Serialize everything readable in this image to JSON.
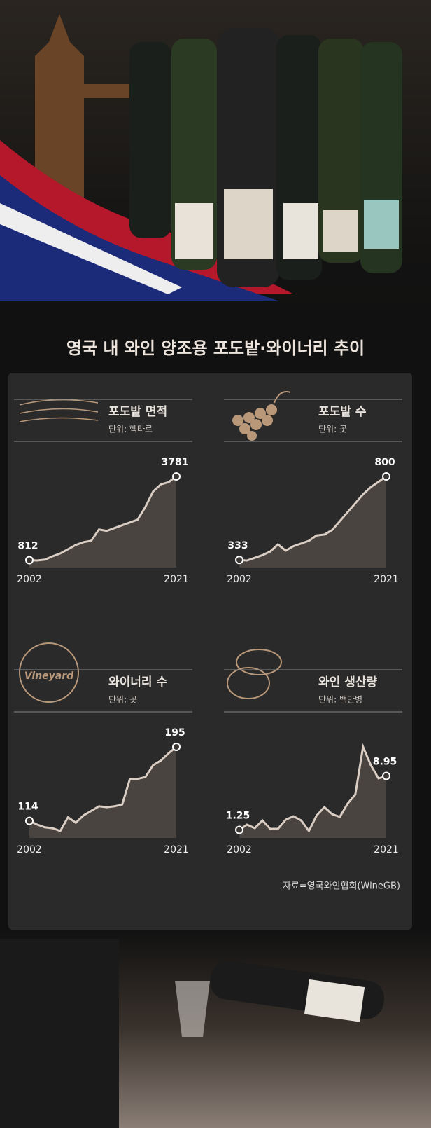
{
  "title": "영국 내 와인 양조용 포도밭·와이너리 추이",
  "source": "자료=영국와인협회(WineGB)",
  "chart_data": [
    {
      "type": "area",
      "title": "포도밭 면적",
      "subtitle": "단위: 헥타르",
      "x": [
        2002,
        2003,
        2004,
        2005,
        2006,
        2007,
        2008,
        2009,
        2010,
        2011,
        2012,
        2013,
        2014,
        2015,
        2016,
        2017,
        2018,
        2019,
        2020,
        2021
      ],
      "xlim": [
        2002,
        2021
      ],
      "xticks": [
        2002,
        2021
      ],
      "color": "#d9cdc4",
      "values": [
        812,
        800,
        830,
        950,
        1050,
        1200,
        1350,
        1450,
        1500,
        1900,
        1850,
        1950,
        2050,
        2150,
        2250,
        2700,
        3250,
        3500,
        3579,
        3781
      ]
    },
    {
      "type": "area",
      "title": "포도밭 수",
      "subtitle": "단위: 곳",
      "x": [
        2002,
        2003,
        2004,
        2005,
        2006,
        2007,
        2008,
        2009,
        2010,
        2011,
        2012,
        2013,
        2014,
        2015,
        2016,
        2017,
        2018,
        2019,
        2020,
        2021
      ],
      "xlim": [
        2002,
        2021
      ],
      "xticks": [
        2002,
        2021
      ],
      "color": "#d9cdc4",
      "values": [
        333,
        330,
        345,
        360,
        380,
        420,
        385,
        410,
        425,
        440,
        470,
        475,
        500,
        550,
        600,
        650,
        700,
        740,
        770,
        800
      ]
    },
    {
      "type": "area",
      "title": "와이너리 수",
      "subtitle": "단위: 곳",
      "x": [
        2002,
        2003,
        2004,
        2005,
        2006,
        2007,
        2008,
        2009,
        2010,
        2011,
        2012,
        2013,
        2014,
        2015,
        2016,
        2017,
        2018,
        2019,
        2020,
        2021
      ],
      "xlim": [
        2002,
        2021
      ],
      "xticks": [
        2002,
        2021
      ],
      "color": "#d9cdc4",
      "values": [
        114,
        110,
        107,
        106,
        103,
        118,
        112,
        120,
        125,
        130,
        129,
        130,
        132,
        160,
        160,
        162,
        175,
        180,
        188,
        195
      ]
    },
    {
      "type": "area",
      "title": "와인 생산량",
      "subtitle": "단위: 백만병",
      "x": [
        2002,
        2003,
        2004,
        2005,
        2006,
        2007,
        2008,
        2009,
        2010,
        2011,
        2012,
        2013,
        2014,
        2015,
        2016,
        2017,
        2018,
        2019,
        2020,
        2021
      ],
      "xlim": [
        2002,
        2021
      ],
      "xticks": [
        2002,
        2021
      ],
      "color": "#d9cdc4",
      "values": [
        1.25,
        2.0,
        1.5,
        2.6,
        1.4,
        1.4,
        2.7,
        3.2,
        2.6,
        1.1,
        3.3,
        4.5,
        3.5,
        3.1,
        5.0,
        6.3,
        13.1,
        10.5,
        8.6,
        8.95
      ]
    }
  ]
}
